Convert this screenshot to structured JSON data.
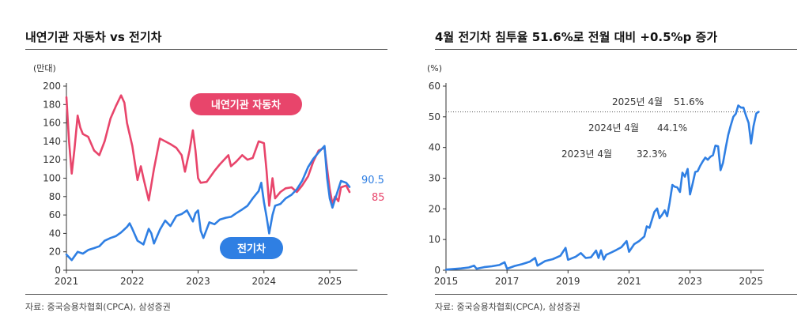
{
  "chart_data": [
    {
      "type": "line",
      "title": "내연기관 자동차 vs 전기차",
      "unit_label": "(만대)",
      "ylim": [
        0,
        200
      ],
      "yticks": [
        0,
        20,
        40,
        60,
        80,
        100,
        120,
        140,
        160,
        180,
        200
      ],
      "xlim": [
        2021,
        2025.42
      ],
      "xticks": [
        2021,
        2022,
        2023,
        2024,
        2025
      ],
      "grid": false,
      "series": [
        {
          "name": "내연기관 자동차",
          "color": "#e8456b",
          "end_label": "85",
          "points": [
            [
              2021.0,
              188
            ],
            [
              2021.04,
              140
            ],
            [
              2021.08,
              105
            ],
            [
              2021.12,
              130
            ],
            [
              2021.17,
              168
            ],
            [
              2021.21,
              155
            ],
            [
              2021.25,
              148
            ],
            [
              2021.33,
              145
            ],
            [
              2021.42,
              130
            ],
            [
              2021.5,
              125
            ],
            [
              2021.58,
              140
            ],
            [
              2021.67,
              165
            ],
            [
              2021.75,
              178
            ],
            [
              2021.83,
              190
            ],
            [
              2021.88,
              182
            ],
            [
              2021.92,
              160
            ],
            [
              2022.0,
              135
            ],
            [
              2022.08,
              98
            ],
            [
              2022.13,
              113
            ],
            [
              2022.17,
              100
            ],
            [
              2022.25,
              76
            ],
            [
              2022.33,
              110
            ],
            [
              2022.42,
              143
            ],
            [
              2022.5,
              140
            ],
            [
              2022.58,
              137
            ],
            [
              2022.67,
              133
            ],
            [
              2022.75,
              125
            ],
            [
              2022.8,
              107
            ],
            [
              2022.87,
              130
            ],
            [
              2022.92,
              152
            ],
            [
              2022.96,
              130
            ],
            [
              2023.0,
              100
            ],
            [
              2023.04,
              95
            ],
            [
              2023.13,
              96
            ],
            [
              2023.25,
              108
            ],
            [
              2023.33,
              115
            ],
            [
              2023.46,
              125
            ],
            [
              2023.5,
              113
            ],
            [
              2023.58,
              118
            ],
            [
              2023.67,
              125
            ],
            [
              2023.75,
              120
            ],
            [
              2023.83,
              122
            ],
            [
              2023.92,
              140
            ],
            [
              2024.0,
              138
            ],
            [
              2024.04,
              108
            ],
            [
              2024.08,
              70
            ],
            [
              2024.13,
              100
            ],
            [
              2024.17,
              78
            ],
            [
              2024.25,
              85
            ],
            [
              2024.33,
              89
            ],
            [
              2024.42,
              90
            ],
            [
              2024.5,
              85
            ],
            [
              2024.58,
              92
            ],
            [
              2024.67,
              102
            ],
            [
              2024.75,
              118
            ],
            [
              2024.83,
              130
            ],
            [
              2024.92,
              133
            ],
            [
              2024.96,
              110
            ],
            [
              2025.0,
              88
            ],
            [
              2025.04,
              72
            ],
            [
              2025.08,
              80
            ],
            [
              2025.13,
              75
            ],
            [
              2025.17,
              90
            ],
            [
              2025.25,
              92
            ],
            [
              2025.3,
              85
            ]
          ]
        },
        {
          "name": "전기차",
          "color": "#2f7fe3",
          "end_label": "90.5",
          "points": [
            [
              2021.0,
              17
            ],
            [
              2021.08,
              11
            ],
            [
              2021.17,
              20
            ],
            [
              2021.25,
              18
            ],
            [
              2021.33,
              22
            ],
            [
              2021.42,
              24
            ],
            [
              2021.5,
              26
            ],
            [
              2021.58,
              32
            ],
            [
              2021.67,
              35
            ],
            [
              2021.75,
              37
            ],
            [
              2021.83,
              41
            ],
            [
              2021.92,
              47
            ],
            [
              2021.96,
              51
            ],
            [
              2022.0,
              45
            ],
            [
              2022.08,
              32
            ],
            [
              2022.17,
              28
            ],
            [
              2022.25,
              45
            ],
            [
              2022.29,
              40
            ],
            [
              2022.33,
              29
            ],
            [
              2022.42,
              44
            ],
            [
              2022.5,
              54
            ],
            [
              2022.58,
              48
            ],
            [
              2022.67,
              59
            ],
            [
              2022.75,
              61
            ],
            [
              2022.83,
              65
            ],
            [
              2022.92,
              53
            ],
            [
              2022.96,
              62
            ],
            [
              2023.0,
              65
            ],
            [
              2023.04,
              43
            ],
            [
              2023.08,
              35
            ],
            [
              2023.17,
              52
            ],
            [
              2023.25,
              50
            ],
            [
              2023.33,
              55
            ],
            [
              2023.42,
              57
            ],
            [
              2023.5,
              58
            ],
            [
              2023.58,
              62
            ],
            [
              2023.67,
              66
            ],
            [
              2023.75,
              70
            ],
            [
              2023.83,
              78
            ],
            [
              2023.92,
              86
            ],
            [
              2023.96,
              95
            ],
            [
              2024.0,
              74
            ],
            [
              2024.04,
              58
            ],
            [
              2024.08,
              40
            ],
            [
              2024.13,
              60
            ],
            [
              2024.17,
              70
            ],
            [
              2024.25,
              72
            ],
            [
              2024.33,
              78
            ],
            [
              2024.42,
              82
            ],
            [
              2024.5,
              88
            ],
            [
              2024.58,
              97
            ],
            [
              2024.67,
              112
            ],
            [
              2024.75,
              121
            ],
            [
              2024.83,
              128
            ],
            [
              2024.92,
              135
            ],
            [
              2024.96,
              100
            ],
            [
              2025.0,
              78
            ],
            [
              2025.04,
              68
            ],
            [
              2025.08,
              77
            ],
            [
              2025.17,
              97
            ],
            [
              2025.25,
              95
            ],
            [
              2025.3,
              90.5
            ]
          ]
        }
      ]
    },
    {
      "type": "line",
      "title": "4월 전기차 침투율 51.6%로 전월 대비 +0.5%p 증가",
      "unit_label": "(%)",
      "ylim": [
        0,
        60
      ],
      "yticks": [
        0,
        10,
        20,
        30,
        40,
        50,
        60
      ],
      "xlim": [
        2015,
        2025.42
      ],
      "xticks": [
        2015,
        2017,
        2019,
        2021,
        2023,
        2025
      ],
      "grid": false,
      "reference_line": {
        "y": 51.6,
        "style": "dotted"
      },
      "annotations": [
        {
          "label": "2025년 4월",
          "value": "51.6%"
        },
        {
          "label": "2024년 4월",
          "value": "44.1%"
        },
        {
          "label": "2023년 4월",
          "value": "32.3%"
        }
      ],
      "series": [
        {
          "name": "",
          "color": "#2f7fe3",
          "points": [
            [
              2015.0,
              0.2
            ],
            [
              2015.25,
              0.4
            ],
            [
              2015.5,
              0.6
            ],
            [
              2015.75,
              0.9
            ],
            [
              2015.92,
              1.5
            ],
            [
              2016.0,
              0.5
            ],
            [
              2016.25,
              1.0
            ],
            [
              2016.5,
              1.3
            ],
            [
              2016.75,
              1.7
            ],
            [
              2016.92,
              2.6
            ],
            [
              2017.0,
              0.5
            ],
            [
              2017.25,
              1.4
            ],
            [
              2017.5,
              2.0
            ],
            [
              2017.75,
              2.8
            ],
            [
              2017.92,
              4.0
            ],
            [
              2018.0,
              1.5
            ],
            [
              2018.25,
              3.0
            ],
            [
              2018.5,
              3.6
            ],
            [
              2018.75,
              4.7
            ],
            [
              2018.92,
              7.3
            ],
            [
              2019.0,
              3.4
            ],
            [
              2019.25,
              4.4
            ],
            [
              2019.42,
              5.6
            ],
            [
              2019.58,
              4.0
            ],
            [
              2019.75,
              4.2
            ],
            [
              2019.92,
              6.4
            ],
            [
              2020.0,
              4.0
            ],
            [
              2020.08,
              6.5
            ],
            [
              2020.17,
              3.5
            ],
            [
              2020.25,
              5.0
            ],
            [
              2020.42,
              5.8
            ],
            [
              2020.58,
              6.6
            ],
            [
              2020.75,
              7.5
            ],
            [
              2020.92,
              9.5
            ],
            [
              2021.0,
              6.0
            ],
            [
              2021.17,
              8.5
            ],
            [
              2021.33,
              9.5
            ],
            [
              2021.5,
              11.0
            ],
            [
              2021.58,
              14.3
            ],
            [
              2021.67,
              13.8
            ],
            [
              2021.83,
              19.0
            ],
            [
              2021.92,
              20.1
            ],
            [
              2022.0,
              17.0
            ],
            [
              2022.08,
              18.0
            ],
            [
              2022.17,
              19.5
            ],
            [
              2022.25,
              17.6
            ],
            [
              2022.33,
              22.0
            ],
            [
              2022.42,
              27.8
            ],
            [
              2022.5,
              27.2
            ],
            [
              2022.58,
              27.0
            ],
            [
              2022.67,
              25.5
            ],
            [
              2022.75,
              31.8
            ],
            [
              2022.83,
              30.5
            ],
            [
              2022.92,
              33.0
            ],
            [
              2023.0,
              24.7
            ],
            [
              2023.08,
              28.0
            ],
            [
              2023.17,
              32.0
            ],
            [
              2023.25,
              32.3
            ],
            [
              2023.33,
              34.0
            ],
            [
              2023.42,
              35.5
            ],
            [
              2023.5,
              36.7
            ],
            [
              2023.58,
              36.0
            ],
            [
              2023.67,
              37.0
            ],
            [
              2023.75,
              37.5
            ],
            [
              2023.83,
              40.6
            ],
            [
              2023.92,
              40.4
            ],
            [
              2024.0,
              32.6
            ],
            [
              2024.08,
              35.0
            ],
            [
              2024.17,
              40.0
            ],
            [
              2024.25,
              44.1
            ],
            [
              2024.33,
              47.0
            ],
            [
              2024.42,
              50.0
            ],
            [
              2024.5,
              51.0
            ],
            [
              2024.58,
              53.7
            ],
            [
              2024.67,
              53.0
            ],
            [
              2024.75,
              53.0
            ],
            [
              2024.83,
              50.5
            ],
            [
              2024.92,
              48.0
            ],
            [
              2025.0,
              41.3
            ],
            [
              2025.08,
              47.0
            ],
            [
              2025.17,
              51.1
            ],
            [
              2025.25,
              51.6
            ]
          ]
        }
      ]
    }
  ],
  "ui": {
    "left_title": "내연기관 자동차 vs 전기차",
    "right_title": "4월 전기차 침투율 51.6%로 전월 대비 +0.5%p 증가",
    "left_source": "자료: 중국승용차협회(CPCA), 삼성증권",
    "right_source": "자료: 중국승용차협회(CPCA), 삼성증권",
    "badge_ice": "내연기관 자동차",
    "badge_ev": "전기차",
    "ice_color": "#e8456b",
    "ev_color": "#2f7fe3"
  }
}
